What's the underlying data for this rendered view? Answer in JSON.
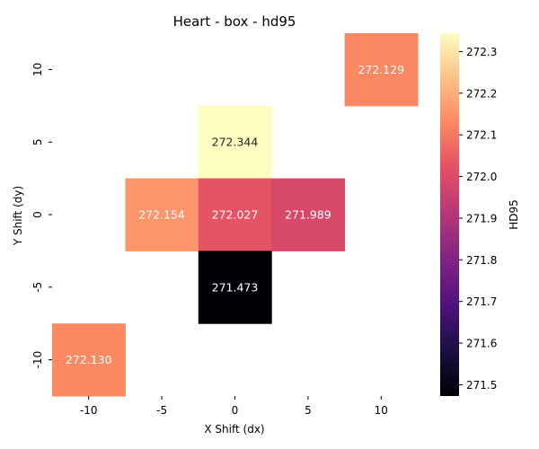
{
  "chart_data": {
    "type": "heatmap",
    "title": "Heart - box - hd95",
    "xlabel": "X Shift (dx)",
    "ylabel": "Y Shift (dy)",
    "x_categories": [
      "-10",
      "-5",
      "0",
      "5",
      "10"
    ],
    "y_categories": [
      "10",
      "5",
      "0",
      "-5",
      "-10"
    ],
    "cells": [
      {
        "x": "10",
        "y": "10",
        "value": 272.129,
        "label": "272.129"
      },
      {
        "x": "0",
        "y": "5",
        "value": 272.344,
        "label": "272.344"
      },
      {
        "x": "-5",
        "y": "0",
        "value": 272.154,
        "label": "272.154"
      },
      {
        "x": "0",
        "y": "0",
        "value": 272.027,
        "label": "272.027"
      },
      {
        "x": "5",
        "y": "0",
        "value": 271.989,
        "label": "271.989"
      },
      {
        "x": "0",
        "y": "-5",
        "value": 271.473,
        "label": "271.473"
      },
      {
        "x": "-10",
        "y": "-10",
        "value": 272.13,
        "label": "272.130"
      }
    ],
    "colorbar": {
      "label": "HD95",
      "colormap": "magma",
      "min": 271.473,
      "max": 272.344,
      "ticks": [
        "271.5",
        "271.6",
        "271.7",
        "271.8",
        "271.9",
        "272.0",
        "272.1",
        "272.2",
        "272.3"
      ]
    },
    "grid": false,
    "missing_cells": "blank"
  }
}
